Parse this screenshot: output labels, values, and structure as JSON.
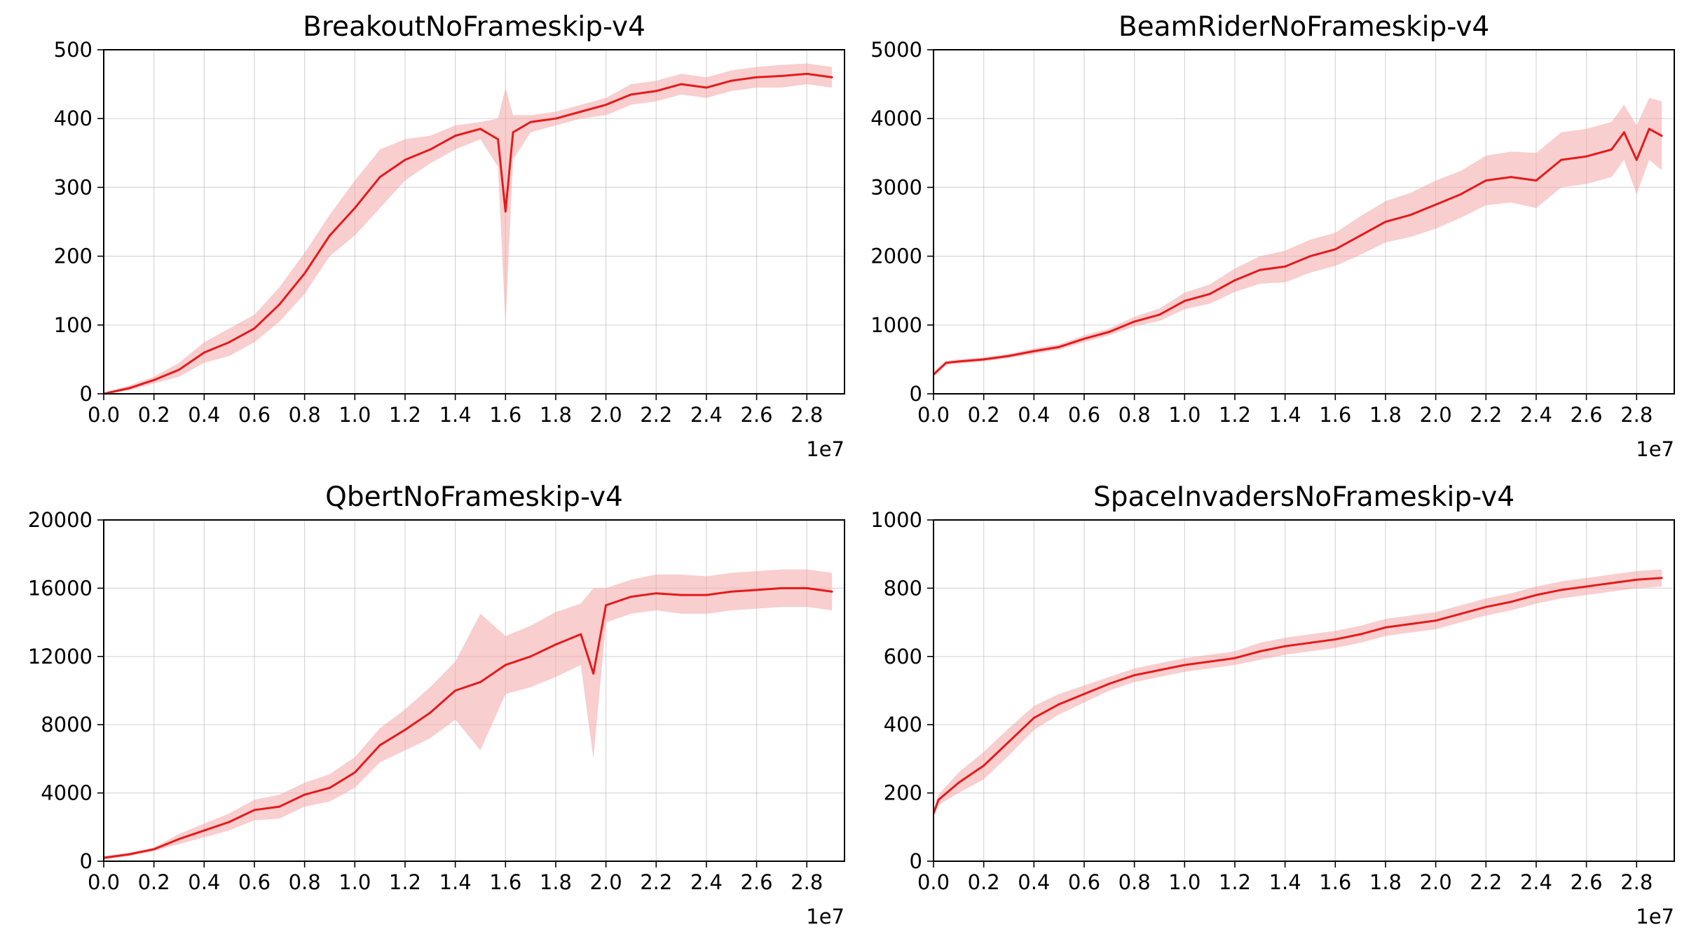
{
  "chart_data": [
    {
      "type": "line",
      "title": "BreakoutNoFrameskip-v4",
      "xlabel": "",
      "ylabel": "",
      "x_offset_label": "1e7",
      "xlim": [
        0.0,
        2.95
      ],
      "ylim": [
        0,
        500
      ],
      "xticks": [
        "0.0",
        "0.2",
        "0.4",
        "0.6",
        "0.8",
        "1.0",
        "1.2",
        "1.4",
        "1.6",
        "1.8",
        "2.0",
        "2.2",
        "2.4",
        "2.6",
        "2.8"
      ],
      "yticks": [
        "0",
        "100",
        "200",
        "300",
        "400",
        "500"
      ],
      "grid": true,
      "colors": {
        "line": "#e41a1c",
        "band": "#f4a6a6"
      },
      "series": [
        {
          "x": [
            0.0,
            0.1,
            0.2,
            0.3,
            0.4,
            0.5,
            0.6,
            0.7,
            0.8,
            0.9,
            1.0,
            1.1,
            1.2,
            1.3,
            1.4,
            1.5,
            1.57,
            1.6,
            1.63,
            1.7,
            1.8,
            1.9,
            2.0,
            2.1,
            2.2,
            2.3,
            2.4,
            2.5,
            2.6,
            2.7,
            2.8,
            2.9
          ],
          "y": [
            0,
            8,
            20,
            35,
            60,
            75,
            95,
            130,
            175,
            230,
            270,
            315,
            340,
            355,
            375,
            385,
            370,
            265,
            380,
            395,
            400,
            410,
            420,
            435,
            440,
            450,
            445,
            455,
            460,
            462,
            465,
            460
          ],
          "lower": [
            0,
            5,
            15,
            25,
            45,
            55,
            75,
            105,
            145,
            200,
            230,
            270,
            310,
            335,
            355,
            370,
            330,
            100,
            340,
            380,
            390,
            400,
            405,
            420,
            425,
            435,
            430,
            440,
            445,
            445,
            450,
            445
          ],
          "upper": [
            2,
            12,
            25,
            45,
            75,
            95,
            115,
            155,
            205,
            260,
            310,
            355,
            370,
            375,
            390,
            395,
            400,
            445,
            405,
            405,
            410,
            420,
            430,
            450,
            455,
            465,
            460,
            470,
            475,
            478,
            480,
            475
          ]
        }
      ]
    },
    {
      "type": "line",
      "title": "BeamRiderNoFrameskip-v4",
      "xlabel": "",
      "ylabel": "",
      "x_offset_label": "1e7",
      "xlim": [
        0.0,
        2.95
      ],
      "ylim": [
        0,
        5000
      ],
      "xticks": [
        "0.0",
        "0.2",
        "0.4",
        "0.6",
        "0.8",
        "1.0",
        "1.2",
        "1.4",
        "1.6",
        "1.8",
        "2.0",
        "2.2",
        "2.4",
        "2.6",
        "2.8"
      ],
      "yticks": [
        "0",
        "1000",
        "2000",
        "3000",
        "4000",
        "5000"
      ],
      "grid": true,
      "colors": {
        "line": "#e41a1c",
        "band": "#f4a6a6"
      },
      "series": [
        {
          "x": [
            0.0,
            0.05,
            0.1,
            0.2,
            0.3,
            0.4,
            0.5,
            0.6,
            0.7,
            0.8,
            0.9,
            1.0,
            1.1,
            1.2,
            1.3,
            1.4,
            1.5,
            1.6,
            1.7,
            1.8,
            1.9,
            2.0,
            2.1,
            2.2,
            2.3,
            2.4,
            2.5,
            2.6,
            2.7,
            2.75,
            2.8,
            2.85,
            2.9
          ],
          "y": [
            280,
            450,
            470,
            500,
            550,
            620,
            680,
            800,
            900,
            1050,
            1150,
            1350,
            1450,
            1650,
            1800,
            1850,
            2000,
            2100,
            2300,
            2500,
            2600,
            2750,
            2900,
            3100,
            3150,
            3100,
            3400,
            3450,
            3550,
            3800,
            3400,
            3850,
            3750
          ],
          "lower": [
            250,
            420,
            440,
            470,
            520,
            580,
            640,
            750,
            850,
            980,
            1060,
            1230,
            1310,
            1480,
            1600,
            1620,
            1760,
            1860,
            2020,
            2200,
            2280,
            2400,
            2560,
            2740,
            2780,
            2700,
            3000,
            3050,
            3150,
            3400,
            2900,
            3400,
            3250
          ],
          "upper": [
            320,
            480,
            500,
            530,
            580,
            660,
            720,
            850,
            950,
            1120,
            1240,
            1470,
            1590,
            1820,
            2000,
            2080,
            2240,
            2340,
            2580,
            2800,
            2920,
            3100,
            3240,
            3460,
            3520,
            3500,
            3800,
            3850,
            3950,
            4200,
            3900,
            4300,
            4250
          ]
        }
      ]
    },
    {
      "type": "line",
      "title": "QbertNoFrameskip-v4",
      "xlabel": "",
      "ylabel": "",
      "x_offset_label": "1e7",
      "xlim": [
        0.0,
        2.95
      ],
      "ylim": [
        0,
        20000
      ],
      "xticks": [
        "0.0",
        "0.2",
        "0.4",
        "0.6",
        "0.8",
        "1.0",
        "1.2",
        "1.4",
        "1.6",
        "1.8",
        "2.0",
        "2.2",
        "2.4",
        "2.6",
        "2.8"
      ],
      "yticks": [
        "0",
        "4000",
        "8000",
        "12000",
        "16000",
        "20000"
      ],
      "grid": true,
      "colors": {
        "line": "#e41a1c",
        "band": "#f4a6a6"
      },
      "series": [
        {
          "x": [
            0.0,
            0.1,
            0.2,
            0.25,
            0.3,
            0.4,
            0.5,
            0.6,
            0.7,
            0.8,
            0.9,
            1.0,
            1.1,
            1.2,
            1.3,
            1.4,
            1.5,
            1.6,
            1.7,
            1.8,
            1.9,
            1.95,
            2.0,
            2.1,
            2.2,
            2.3,
            2.4,
            2.5,
            2.6,
            2.7,
            2.8,
            2.9
          ],
          "y": [
            200,
            400,
            700,
            1000,
            1300,
            1800,
            2300,
            3000,
            3200,
            3900,
            4300,
            5200,
            6800,
            7700,
            8700,
            10000,
            10500,
            11500,
            12000,
            12700,
            13300,
            11000,
            15000,
            15500,
            15700,
            15600,
            15600,
            15800,
            15900,
            16000,
            16000,
            15800
          ],
          "lower": [
            100,
            300,
            600,
            800,
            1000,
            1400,
            1800,
            2400,
            2500,
            3200,
            3500,
            4300,
            5800,
            6500,
            7200,
            8300,
            6500,
            9800,
            10200,
            10800,
            11500,
            6000,
            14000,
            14500,
            14700,
            14500,
            14500,
            14700,
            14800,
            14900,
            14900,
            14700
          ],
          "upper": [
            300,
            500,
            800,
            1200,
            1600,
            2200,
            2800,
            3600,
            3900,
            4600,
            5100,
            6100,
            7800,
            8900,
            10200,
            11700,
            14500,
            13200,
            13800,
            14600,
            15100,
            16000,
            16000,
            16500,
            16800,
            16800,
            16700,
            16900,
            17000,
            17100,
            17100,
            16900
          ]
        }
      ]
    },
    {
      "type": "line",
      "title": "SpaceInvadersNoFrameskip-v4",
      "xlabel": "",
      "ylabel": "",
      "x_offset_label": "1e7",
      "xlim": [
        0.0,
        2.95
      ],
      "ylim": [
        0,
        1000
      ],
      "xticks": [
        "0.0",
        "0.2",
        "0.4",
        "0.6",
        "0.8",
        "1.0",
        "1.2",
        "1.4",
        "1.6",
        "1.8",
        "2.0",
        "2.2",
        "2.4",
        "2.6",
        "2.8"
      ],
      "yticks": [
        "0",
        "200",
        "400",
        "600",
        "800",
        "1000"
      ],
      "grid": true,
      "colors": {
        "line": "#e41a1c",
        "band": "#f4a6a6"
      },
      "series": [
        {
          "x": [
            0.0,
            0.02,
            0.1,
            0.2,
            0.3,
            0.4,
            0.5,
            0.6,
            0.7,
            0.8,
            0.9,
            1.0,
            1.1,
            1.2,
            1.3,
            1.4,
            1.5,
            1.6,
            1.7,
            1.8,
            1.9,
            2.0,
            2.1,
            2.2,
            2.3,
            2.4,
            2.5,
            2.6,
            2.7,
            2.8,
            2.9
          ],
          "y": [
            140,
            180,
            230,
            280,
            350,
            420,
            460,
            490,
            520,
            545,
            560,
            575,
            585,
            595,
            615,
            630,
            640,
            650,
            665,
            685,
            695,
            705,
            725,
            745,
            760,
            780,
            795,
            805,
            815,
            825,
            830
          ],
          "lower": [
            130,
            165,
            200,
            240,
            310,
            385,
            430,
            465,
            500,
            525,
            540,
            555,
            565,
            575,
            590,
            605,
            615,
            625,
            640,
            660,
            670,
            680,
            700,
            720,
            735,
            755,
            770,
            780,
            790,
            800,
            805
          ],
          "upper": [
            150,
            195,
            260,
            320,
            390,
            455,
            490,
            515,
            540,
            565,
            580,
            595,
            605,
            615,
            640,
            655,
            665,
            675,
            690,
            710,
            720,
            730,
            750,
            770,
            785,
            805,
            820,
            830,
            840,
            850,
            855
          ]
        }
      ]
    }
  ]
}
